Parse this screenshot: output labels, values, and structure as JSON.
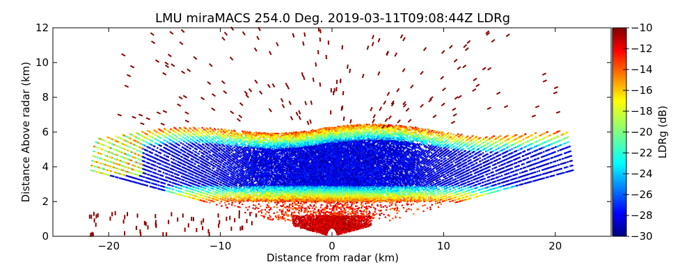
{
  "chart_data": {
    "type": "heatmap",
    "title": "LMU miraMACS 254.0 Deg. 2019-03-11T09:08:44Z  LDRg",
    "xlabel": "Distance from radar (km)",
    "ylabel": "Distance Above radar  (km)",
    "xlim": [
      -25,
      25
    ],
    "ylim": [
      0,
      12
    ],
    "x_ticks": [
      -20,
      -10,
      0,
      10,
      20
    ],
    "x_tick_labels": [
      "−20",
      "−10",
      "0",
      "10",
      "20"
    ],
    "y_ticks": [
      0,
      2,
      4,
      6,
      8,
      10,
      12
    ],
    "y_tick_labels": [
      "0",
      "2",
      "4",
      "6",
      "8",
      "10",
      "12"
    ],
    "colorbar": {
      "label": "LDRg (dB)",
      "range": [
        -30,
        -10
      ],
      "ticks": [
        -30,
        -28,
        -26,
        -24,
        -22,
        -20,
        -18,
        -16,
        -14,
        -12,
        -10
      ],
      "tick_labels": [
        "−30",
        "−28",
        "−26",
        "−24",
        "−22",
        "−20",
        "−18",
        "−16",
        "−14",
        "−12",
        "−10"
      ],
      "colormap": "jet"
    },
    "scan": {
      "elevation_range_deg": [
        10,
        170
      ],
      "max_range_km": 22,
      "cloud_base_km": 2.0,
      "cloud_top_km": 6.3,
      "ldr_cloud_core_dB": -28,
      "ldr_cloud_edge_dB": -14,
      "ldr_noise_dB": -10,
      "near_radar_clutter_dB": -10
    }
  }
}
